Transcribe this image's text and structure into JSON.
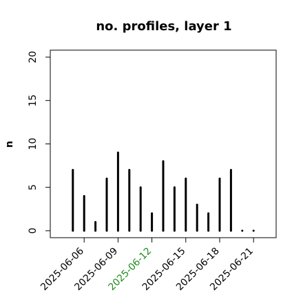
{
  "chart_data": {
    "type": "histogram-lines",
    "title": "no. profiles, layer 1",
    "y_label": "n",
    "x": [
      "2025-06-05",
      "2025-06-06",
      "2025-06-07",
      "2025-06-08",
      "2025-06-09",
      "2025-06-10",
      "2025-06-11",
      "2025-06-12",
      "2025-06-13",
      "2025-06-14",
      "2025-06-15",
      "2025-06-16",
      "2025-06-17",
      "2025-06-18",
      "2025-06-19",
      "2025-06-20",
      "2025-06-21"
    ],
    "values": [
      7,
      4,
      1,
      6,
      9,
      7,
      5,
      2,
      8,
      5,
      6,
      3,
      2,
      6,
      7,
      0,
      0
    ],
    "color": "#000000",
    "xlim": [
      "2025-06-03",
      "2025-06-23"
    ],
    "xticks": [
      "2025-06-06",
      "2025-06-09",
      "2025-06-12",
      "2025-06-15",
      "2025-06-18",
      "2025-06-21"
    ],
    "highlight_tick": "2025-06-12",
    "highlight_color": "#228b22",
    "ylim": [
      -0.8,
      20.8
    ],
    "yticks": [
      0,
      5,
      10,
      15,
      20
    ]
  }
}
